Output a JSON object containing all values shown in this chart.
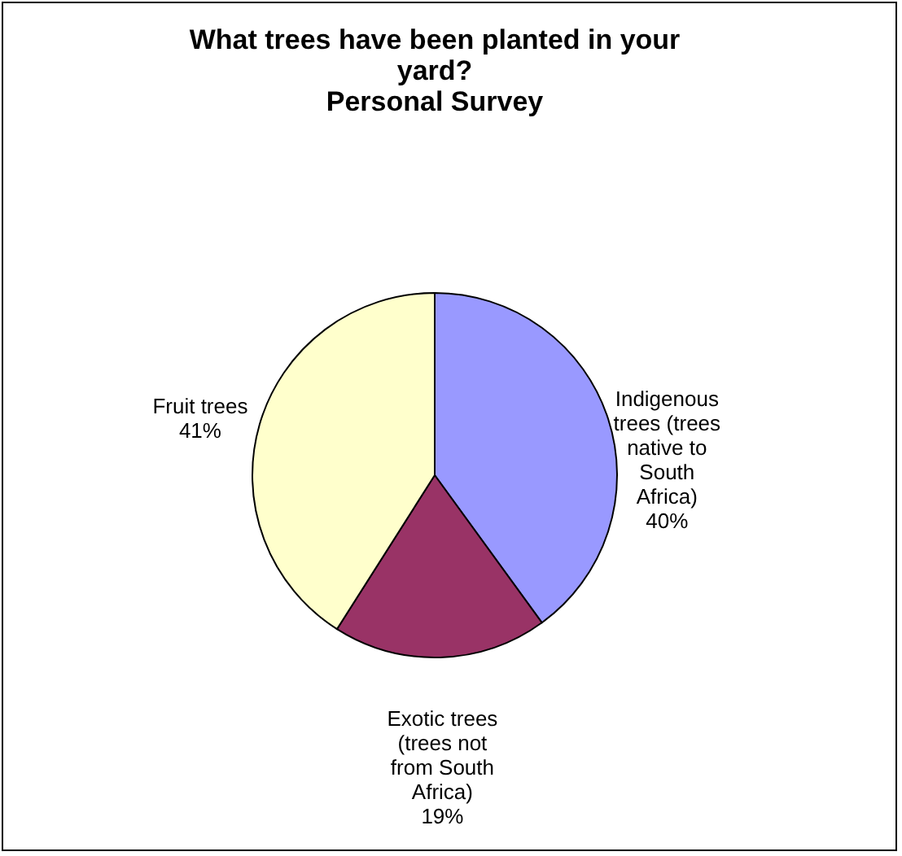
{
  "chart_data": {
    "type": "pie",
    "title": "What trees have been planted in your yard?",
    "subtitle": "Personal Survey",
    "categories": [
      "Indigenous trees (trees native to South Africa)",
      "Exotic trees (trees not from South Africa)",
      "Fruit trees"
    ],
    "values": [
      40,
      19,
      41
    ],
    "colors": [
      "#9999ff",
      "#993366",
      "#ffffcc"
    ],
    "value_labels": [
      "40%",
      "19%",
      "41%"
    ],
    "legend": false
  }
}
